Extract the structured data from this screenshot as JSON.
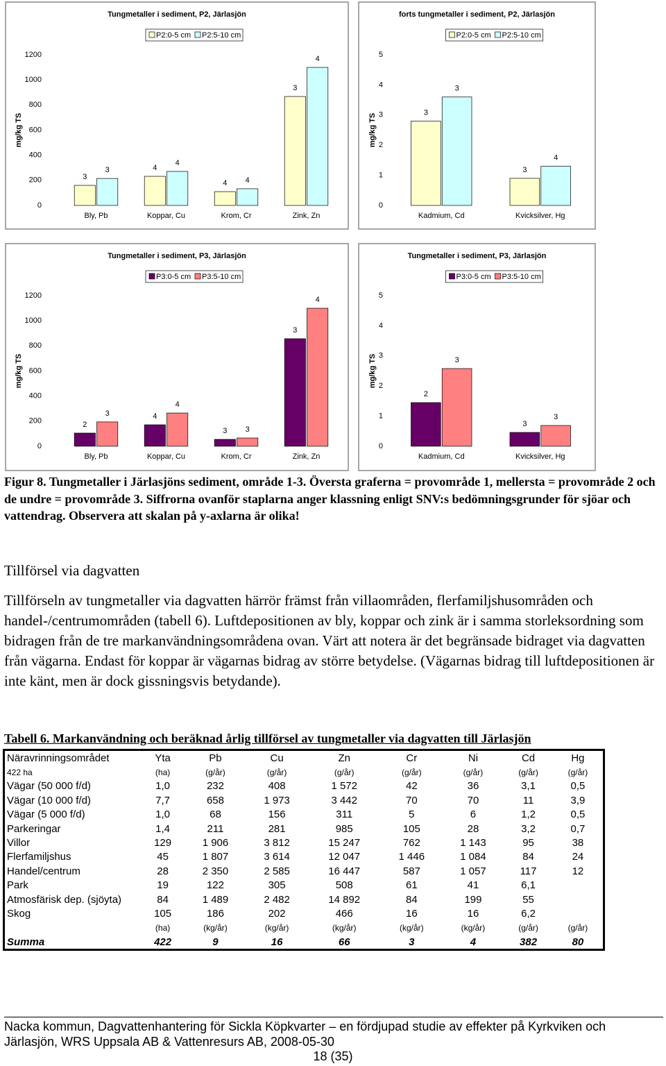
{
  "chart_data": [
    {
      "type": "bar",
      "title": "Tungmetaller i sediment, P2, Järlasjön",
      "y_label": "mg/kg TS",
      "categories": [
        "Bly, Pb",
        "Koppar, Cu",
        "Krom, Cr",
        "Zink, Zn"
      ],
      "series": [
        {
          "name": "P2:0-5 cm",
          "color": "#ffffcc",
          "values": [
            160,
            232,
            110,
            868
          ],
          "class_labels": [
            "3",
            "4",
            "4",
            "3"
          ]
        },
        {
          "name": "P2:5-10 cm",
          "color": "#ccffff",
          "values": [
            215,
            271,
            133,
            1100
          ],
          "class_labels": [
            "3",
            "4",
            "4",
            "4"
          ]
        }
      ],
      "ylim": [
        0,
        1200
      ],
      "yticks": [
        0,
        200,
        400,
        600,
        800,
        1000,
        1200
      ],
      "grid": false
    },
    {
      "type": "bar",
      "title": "forts tungmetaller i sediment, P2, Järlasjön",
      "y_label": "mg/kg TS",
      "categories": [
        "Kadmium, Cd",
        "Kvicksilver, Hg"
      ],
      "series": [
        {
          "name": "P2:0-5 cm",
          "color": "#ffffcc",
          "values": [
            2.8,
            0.9
          ],
          "class_labels": [
            "3",
            "3"
          ]
        },
        {
          "name": "P2:5-10 cm",
          "color": "#ccffff",
          "values": [
            3.6,
            1.3
          ],
          "class_labels": [
            "3",
            "4"
          ]
        }
      ],
      "ylim": [
        0,
        5
      ],
      "yticks": [
        0,
        1,
        2,
        3,
        4,
        5
      ],
      "grid": false
    },
    {
      "type": "bar",
      "title": "Tungmetaller i sediment, P3, Järlasjön",
      "y_label": "mg/kg TS",
      "categories": [
        "Bly, Pb",
        "Koppar, Cu",
        "Krom, Cr",
        "Zink, Zn"
      ],
      "series": [
        {
          "name": "P3:0-5 cm",
          "color": "#660066",
          "values": [
            105,
            171,
            55,
            857
          ],
          "class_labels": [
            "2",
            "4",
            "3",
            "3"
          ]
        },
        {
          "name": "P3:5-10 cm",
          "color": "#ff8080",
          "values": [
            194,
            265,
            66,
            1100
          ],
          "class_labels": [
            "3",
            "4",
            "3",
            "4"
          ]
        }
      ],
      "ylim": [
        0,
        1200
      ],
      "yticks": [
        0,
        200,
        400,
        600,
        800,
        1000,
        1200
      ],
      "grid": false
    },
    {
      "type": "bar",
      "title": "Tungmetaller i sediment, P3, Järlasjön",
      "y_label": "mg/kg TS",
      "categories": [
        "Kadmium, Cd",
        "Kvicksilver, Hg"
      ],
      "series": [
        {
          "name": "P3:0-5 cm",
          "color": "#660066",
          "values": [
            1.45,
            0.46
          ],
          "class_labels": [
            "2",
            "3"
          ]
        },
        {
          "name": "P3:5-10 cm",
          "color": "#ff8080",
          "values": [
            2.58,
            0.69
          ],
          "class_labels": [
            "3",
            "3"
          ]
        }
      ],
      "ylim": [
        0,
        5
      ],
      "yticks": [
        0,
        1,
        2,
        3,
        4,
        5
      ],
      "grid": false
    }
  ],
  "figure_caption": "Figur 8. Tungmetaller i Järlasjöns sediment, område 1-3. Översta graferna = provområde 1, mellersta = provområde 2 och de undre = provområde 3. Siffrorna ovanför staplarna anger klassning enligt SNV:s bedömningsgrunder för sjöar och vattendrag. Observera att skalan på y-axlarna är olika!",
  "section": {
    "heading": "Tillförsel via dagvatten",
    "paragraph": "Tillförseln av tungmetaller via dagvatten härrör främst från villaområden, flerfamiljshusområden och handel-/centrumområden (tabell 6). Luftdepositionen av bly, koppar och zink är i samma storleksordning som bidragen från de tre markanvändningsområdena ovan. Värt att notera är det begränsade bidraget via dagvatten från vägarna. Endast för koppar är vägarnas bidrag av större betydelse. (Vägarnas bidrag till luftdepositionen är inte känt, men är dock gissningsvis betydande)."
  },
  "table": {
    "caption": "Tabell 6. Markanvändning och beräknad årlig tillförsel av tungmetaller via dagvatten till Järlasjön",
    "header": [
      "Näravrinningsområdet",
      "Yta",
      "Pb",
      "Cu",
      "Zn",
      "Cr",
      "Ni",
      "Cd",
      "Hg"
    ],
    "units": [
      "422 ha",
      "(ha)",
      "(g/år)",
      "(g/år)",
      "(g/år)",
      "(g/år)",
      "(g/år)",
      "(g/år)",
      "(g/år)"
    ],
    "rows": [
      [
        "Vägar (50 000 f/d)",
        "1,0",
        "232",
        "408",
        "1 572",
        "42",
        "36",
        "3,1",
        "0,5"
      ],
      [
        "Vägar (10 000 f/d)",
        "7,7",
        "658",
        "1 973",
        "3 442",
        "70",
        "70",
        "11",
        "3,9"
      ],
      [
        "Vägar (5 000 f/d)",
        "1,0",
        "68",
        "156",
        "311",
        "5",
        "6",
        "1,2",
        "0,5"
      ],
      [
        "Parkeringar",
        "1,4",
        "211",
        "281",
        "985",
        "105",
        "28",
        "3,2",
        "0,7"
      ],
      [
        "Villor",
        "129",
        "1 906",
        "3 812",
        "15 247",
        "762",
        "1 143",
        "95",
        "38"
      ],
      [
        "Flerfamiljshus",
        "45",
        "1 807",
        "3 614",
        "12 047",
        "1 446",
        "1 084",
        "84",
        "24"
      ],
      [
        "Handel/centrum",
        "28",
        "2 350",
        "2 585",
        "16 447",
        "587",
        "1 057",
        "117",
        "12"
      ],
      [
        "Park",
        "19",
        "122",
        "305",
        "508",
        "61",
        "41",
        "6,1",
        null
      ],
      [
        "Atmosfärisk dep. (sjöyta)",
        "84",
        "1 489",
        "2 482",
        "14 892",
        "84",
        "199",
        "55",
        null
      ],
      [
        "Skog",
        "105",
        "186",
        "202",
        "466",
        "16",
        "16",
        "6,2",
        null
      ]
    ],
    "units_total": [
      null,
      "(ha)",
      "(kg/år)",
      "(kg/år)",
      "(kg/år)",
      "(kg/år)",
      "(kg/år)",
      "(g/år)",
      "(g/år)"
    ],
    "total": [
      "Summa",
      "422",
      "9",
      "16",
      "66",
      "3",
      "4",
      "382",
      "80"
    ]
  },
  "footer": {
    "line1": "Nacka kommun, Dagvattenhantering för Sickla Köpkvarter – en fördjupad studie av effekter på Kyrkviken och",
    "line2": "Järlasjön, WRS Uppsala AB & Vattenresurs AB, 2008-05-30",
    "page": "18 (35)"
  }
}
